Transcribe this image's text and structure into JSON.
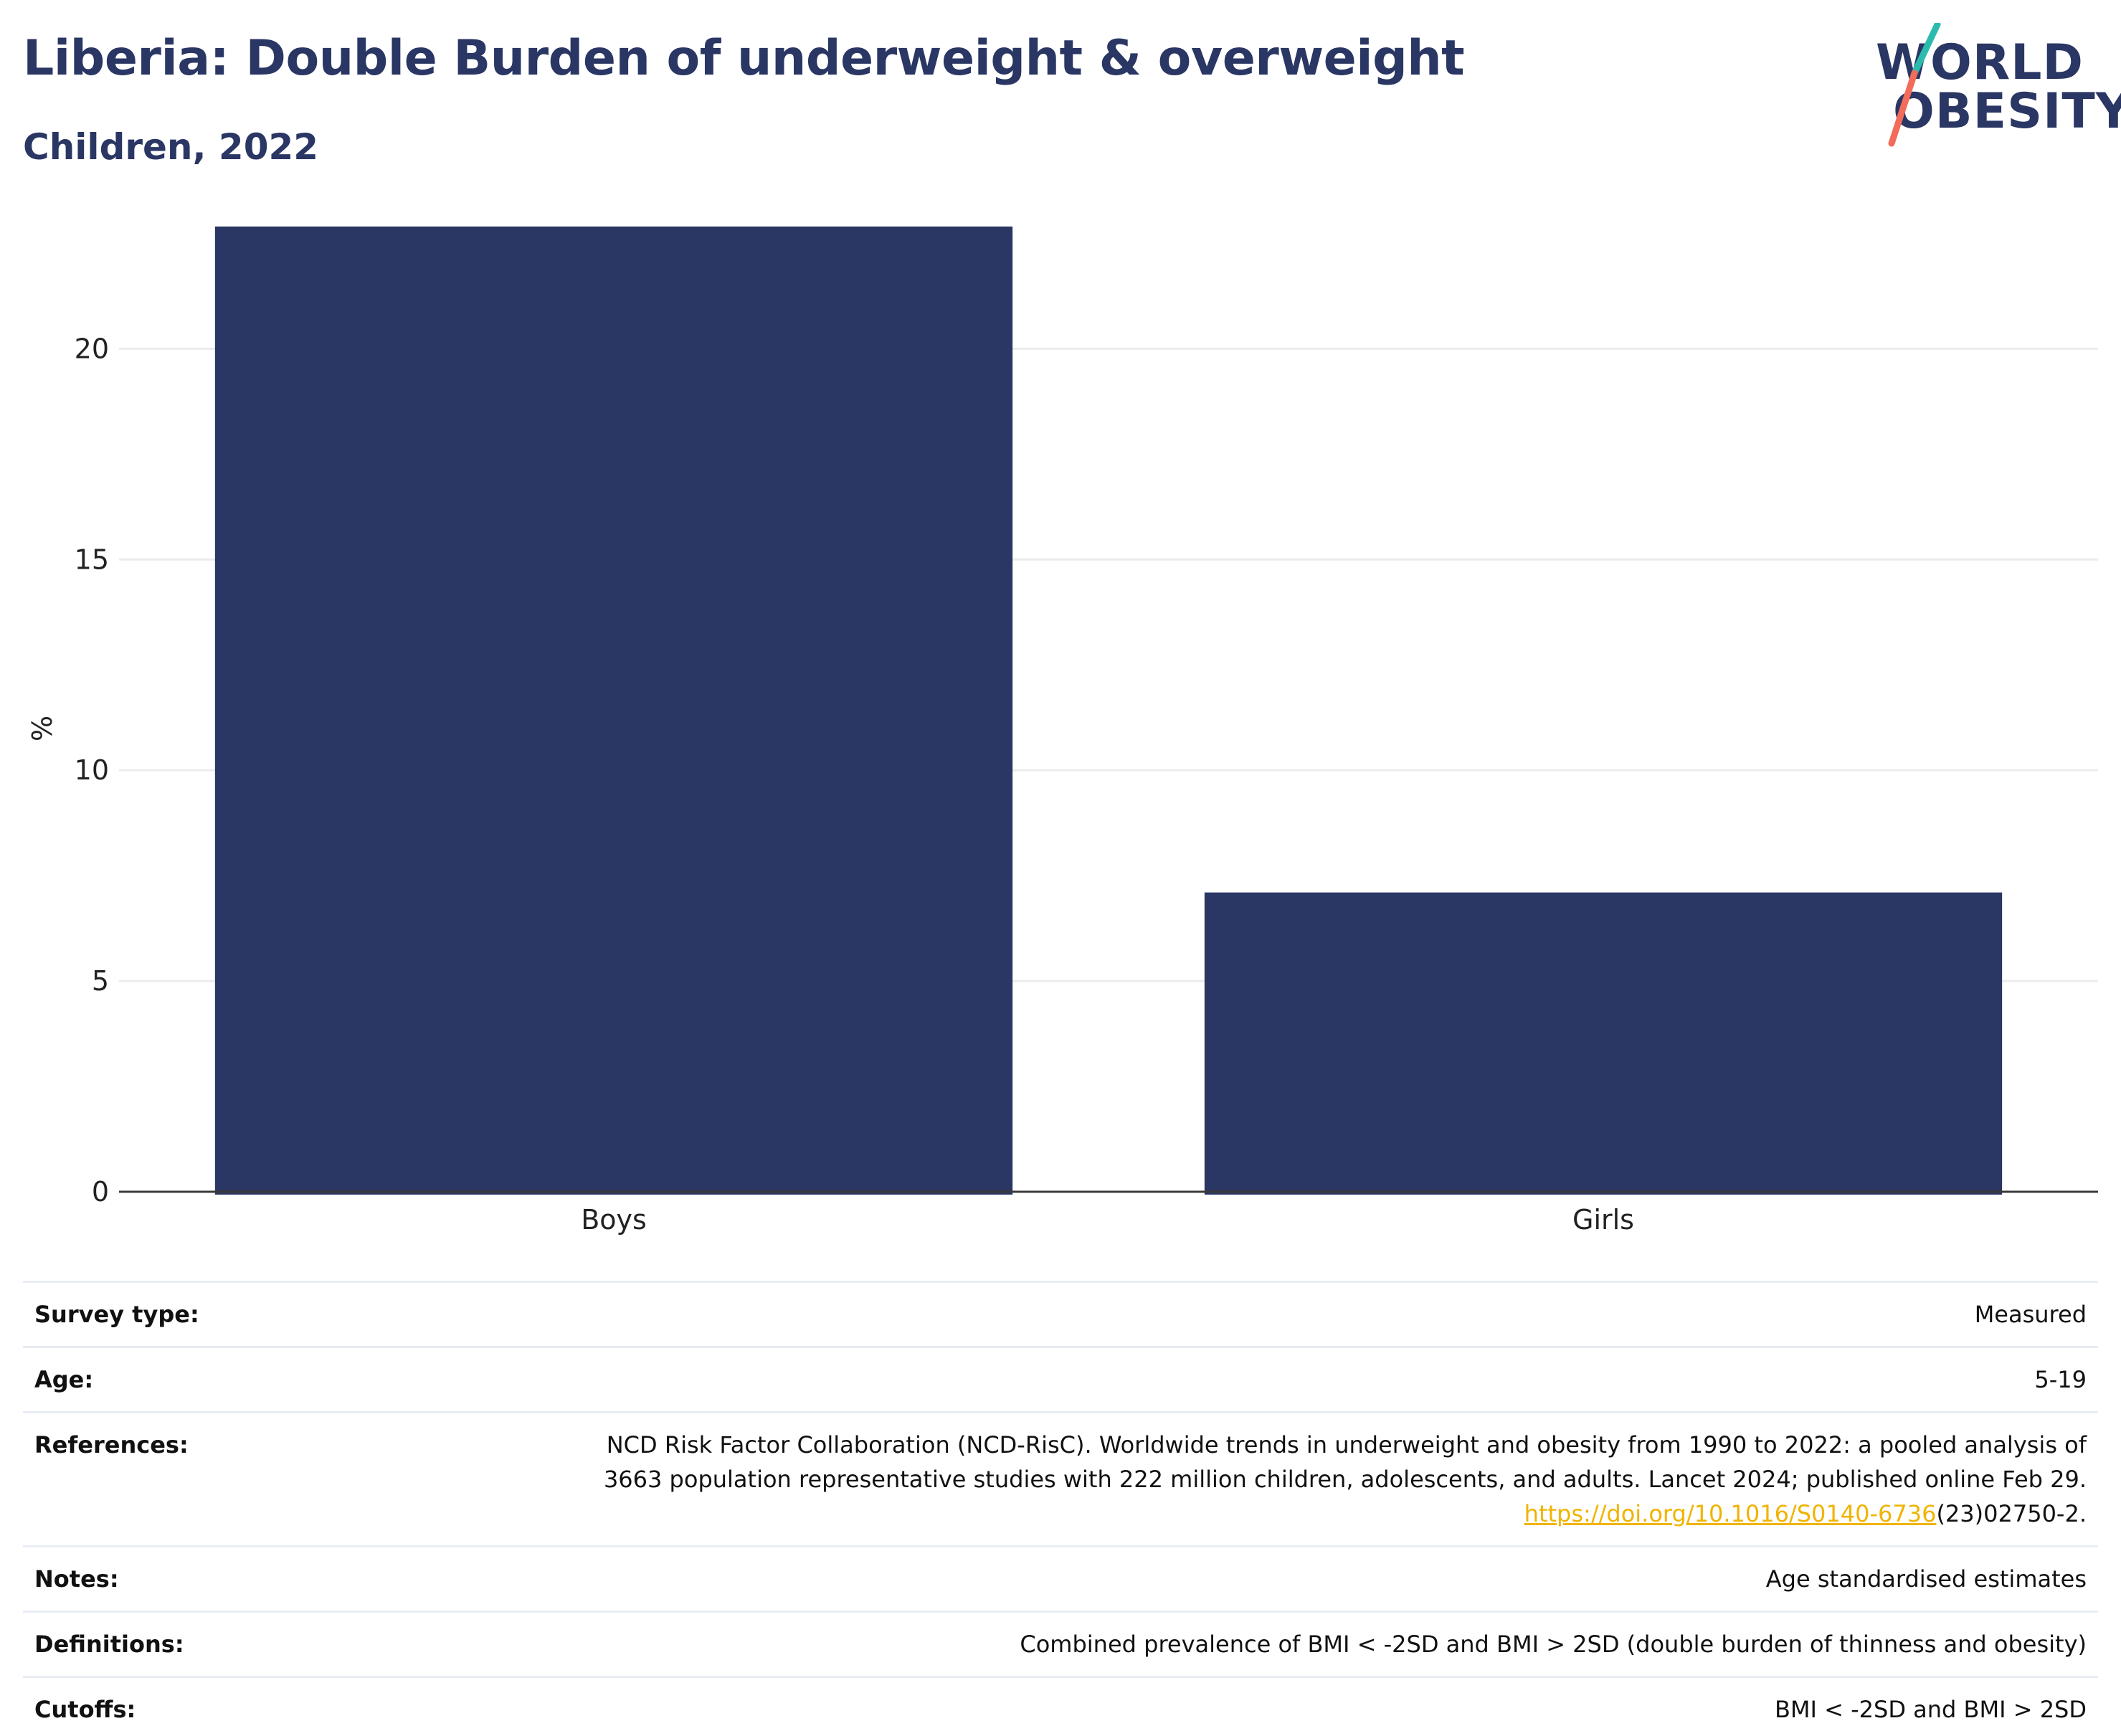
{
  "header": {
    "title": "Liberia: Double Burden of underweight & overweight",
    "subtitle": "Children, 2022"
  },
  "logo": {
    "line1": "WORLD",
    "line2": "OBESITY",
    "colors": {
      "text": "#2a3663",
      "slash_top": "#2bbbad",
      "slash_bottom": "#f26b5b"
    }
  },
  "chart_data": {
    "type": "bar",
    "categories": [
      "Boys",
      "Girls"
    ],
    "values": [
      22.9,
      7.1
    ],
    "ylabel": "%",
    "xlabel": "",
    "ylim": [
      0,
      23
    ],
    "yticks": [
      0,
      5,
      10,
      15,
      20
    ],
    "bar_color": "#2a3663",
    "grid": true,
    "legend": "none"
  },
  "info": {
    "survey_type": {
      "label": "Survey type:",
      "value": "Measured"
    },
    "age": {
      "label": "Age:",
      "value": "5-19"
    },
    "references": {
      "label": "References:",
      "line1": "NCD Risk Factor Collaboration (NCD-RisC). Worldwide trends in underweight and obesity from 1990 to 2022: a pooled analysis of",
      "line2": "3663 population representative studies with 222 million children, adolescents, and adults. Lancet 2024; published online Feb 29.",
      "link_text": "https://doi.org/10.1016/S0140-6736",
      "link_suffix": "(23)02750-2."
    },
    "notes": {
      "label": "Notes:",
      "value": "Age standardised estimates"
    },
    "definitions": {
      "label": "Definitions:",
      "value": "Combined prevalence of BMI < -2SD and BMI > 2SD (double burden of thinness and obesity)"
    },
    "cutoffs": {
      "label": "Cutoffs:",
      "value": "BMI < -2SD and BMI > 2SD"
    }
  }
}
